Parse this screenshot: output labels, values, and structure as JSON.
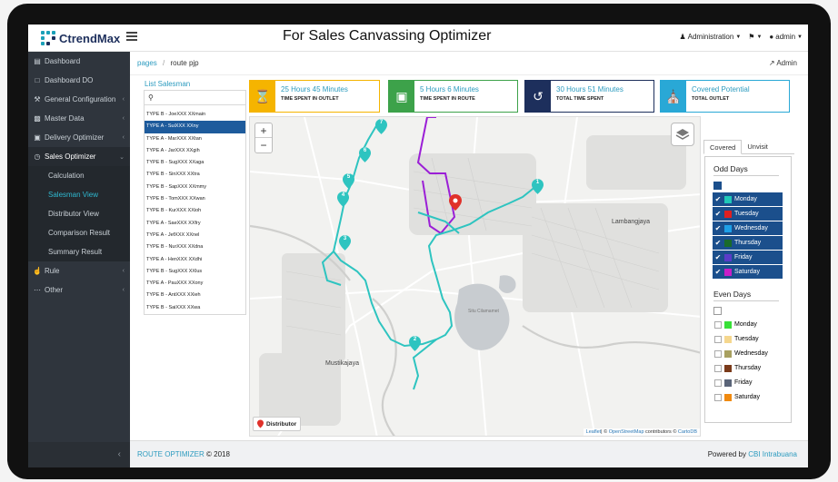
{
  "app": {
    "logo_text": "CtrendMax",
    "heading": "For Sales Canvassing Optimizer",
    "top_right": {
      "administration": "Administration",
      "user": "admin"
    }
  },
  "sidebar": {
    "items": [
      {
        "label": "Dashboard",
        "icon": "bar-chart-icon"
      },
      {
        "label": "Dashboard DO",
        "icon": "document-icon"
      },
      {
        "label": "General Configuration",
        "icon": "wrench-icon"
      },
      {
        "label": "Master Data",
        "icon": "card-icon"
      },
      {
        "label": "Delivery Optimizer",
        "icon": "car-icon"
      },
      {
        "label": "Sales Optimizer",
        "icon": "clock-icon"
      }
    ],
    "sub_items": [
      "Calculation",
      "Salesman View",
      "Distributor View",
      "Comparison Result",
      "Summary Result"
    ],
    "bottom_items": [
      {
        "label": "Rule",
        "icon": "thumbs-up-icon"
      },
      {
        "label": "Other",
        "icon": "more-icon"
      }
    ],
    "collapse_symbol": "‹"
  },
  "breadcrumb": {
    "root": "pages",
    "current": "route pjp"
  },
  "admin_link": "Admin",
  "salesman_list": {
    "title": "List Salesman",
    "items": [
      "TYPE B - JoeXXX XXmain",
      "TYPE A - SuiXXX XXny",
      "TYPE A - MarXXX XXtan",
      "TYPE A - JarXXX XXgih",
      "TYPE B - SugXXX XXaga",
      "TYPE B - SinXXX XXtra",
      "TYPE B - SapXXX XXmmy",
      "TYPE B - TomXXX XXwan",
      "TYPE B - KurXXX XXioh",
      "TYPE A - SaeXXX XXfry",
      "TYPE A - JefXXX XXnel",
      "TYPE B - NurXXX XXdna",
      "TYPE A - HenXXX XXdhi",
      "TYPE B - SugXXX XXlus",
      "TYPE A - PauXXX XXony",
      "TYPE B - AntXXX XXieh",
      "TYPE B - SaiXXX XXwa"
    ],
    "selected_index": 1
  },
  "stats": [
    {
      "value": "25 Hours 45 Minutes",
      "label": "TIME SPENT IN OUTLET",
      "color": "#f5b400",
      "icon": "hourglass-icon"
    },
    {
      "value": "5 Hours 6 Minutes",
      "label": "TIME SPENT IN ROUTE",
      "color": "#3da24a",
      "icon": "car-icon"
    },
    {
      "value": "30 Hours 51 Minutes",
      "label": "TOTAL TIME SPENT",
      "color": "#1d2f5c",
      "icon": "history-icon"
    },
    {
      "value": "Covered Potential",
      "label": "TOTAL OUTLET",
      "color": "#29a8d6",
      "icon": "store-icon"
    }
  ],
  "map": {
    "labels": {
      "town_1": "Mustikajaya",
      "town_2": "Lambangjaya",
      "lake": "Situ Cilamamet"
    },
    "legend_label": "Distributor",
    "attribution": {
      "leaflet": "Leaflet",
      "mid": "| © ",
      "osm": "OpenStreetMap",
      "contrib": " contributors © ",
      "carto": "CartoDB"
    },
    "markers": [
      "1",
      "2",
      "3",
      "4",
      "5",
      "6",
      "7"
    ],
    "route_color": "#2ec4c0",
    "boundary_color": "#9b1fd6",
    "distributor_color": "#e0312a"
  },
  "tabs": [
    "Covered",
    "Unvisit"
  ],
  "odd_days": {
    "title": "Odd Days",
    "all_checked": true,
    "days": [
      {
        "label": "Monday",
        "color": "#20c8b8",
        "checked": true
      },
      {
        "label": "Tuesday",
        "color": "#e02020",
        "checked": true
      },
      {
        "label": "Wednesday",
        "color": "#1ea0e8",
        "checked": true
      },
      {
        "label": "Thursday",
        "color": "#1a6b2a",
        "checked": true
      },
      {
        "label": "Friday",
        "color": "#5a3cc8",
        "checked": true
      },
      {
        "label": "Saturday",
        "color": "#c81ec8",
        "checked": true
      }
    ]
  },
  "even_days": {
    "title": "Even Days",
    "all_checked": false,
    "days": [
      {
        "label": "Monday",
        "color": "#38e038",
        "checked": false
      },
      {
        "label": "Tuesday",
        "color": "#f5d78e",
        "checked": false
      },
      {
        "label": "Wednesday",
        "color": "#a8a060",
        "checked": false
      },
      {
        "label": "Thursday",
        "color": "#7a3a1a",
        "checked": false
      },
      {
        "label": "Friday",
        "color": "#5a6478",
        "checked": false
      },
      {
        "label": "Saturday",
        "color": "#f08a10",
        "checked": false
      }
    ]
  },
  "footer": {
    "left_brand": "ROUTE OPTIMIZER",
    "left_text": " © 2018",
    "right_text": "Powered by ",
    "right_brand": "CBI Intrabuana"
  }
}
